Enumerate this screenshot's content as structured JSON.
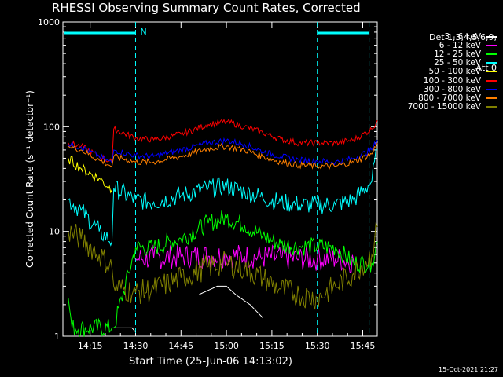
{
  "title": "RHESSI Observing Summary Count Rates, Corrected",
  "xlabel": "Start Time (25-Jun-06 14:13:02)",
  "ylabel": "Corrected Count Rate (s⁻¹ detector⁻¹)",
  "timestamp": "15-Oct-2021 21:27",
  "detectors": "Det 1,3,4,5,6,9,",
  "attenuator": "Att 0",
  "chart_data": {
    "type": "line",
    "yscale": "log",
    "ylim": [
      1,
      1000
    ],
    "xlim_minutes": [
      14.1,
      15.83
    ],
    "x_ticks": [
      "14:15",
      "14:30",
      "14:45",
      "15:00",
      "15:15",
      "15:30",
      "15:45"
    ],
    "y_ticks": [
      "1",
      "10",
      "100",
      "1000"
    ],
    "night_markers": [
      14.5,
      15.5
    ],
    "saa_markers": [
      15.785
    ],
    "flag_label": "N",
    "series": [
      {
        "name": "3 - 6 keV",
        "color": "#ffffff",
        "x": [
          14.13,
          14.37,
          14.38,
          14.48,
          14.5,
          14.52,
          14.8,
          14.85,
          14.95,
          15.0,
          15.05,
          15.13,
          15.2,
          15.25,
          15.3,
          15.45,
          15.5,
          15.6,
          15.7,
          15.8
        ],
        "y": [
          null,
          null,
          1.2,
          1.2,
          1.1,
          null,
          null,
          2.5,
          3.0,
          3.0,
          2.5,
          2.0,
          1.5,
          null,
          null,
          null,
          null,
          null,
          null,
          null
        ]
      },
      {
        "name": "6 - 12 keV",
        "color": "#ff00ff",
        "x": [
          14.13,
          14.37,
          14.5,
          14.6,
          14.75,
          14.9,
          15.0,
          15.1,
          15.2,
          15.3,
          15.4,
          15.5,
          15.6,
          15.7,
          15.8
        ],
        "y": [
          null,
          null,
          5.5,
          5.6,
          5.8,
          5.8,
          5.9,
          5.8,
          5.7,
          5.6,
          5.5,
          5.5,
          5.5,
          5.2,
          null
        ]
      },
      {
        "name": "12 - 25 keV",
        "color": "#00ff00",
        "x": [
          14.13,
          14.15,
          14.37,
          14.38,
          14.5,
          14.6,
          14.75,
          14.9,
          15.0,
          15.1,
          15.2,
          15.3,
          15.4,
          15.5,
          15.6,
          15.7,
          15.8,
          15.83
        ],
        "y": [
          2.3,
          1.2,
          1.2,
          1.2,
          7.0,
          7.0,
          8.5,
          12.0,
          13.5,
          11.5,
          9.0,
          7.5,
          7.2,
          7.2,
          7.0,
          5.0,
          5.0,
          8.0
        ]
      },
      {
        "name": "25 - 50 keV",
        "color": "#00ffff",
        "x": [
          14.13,
          14.2,
          14.3,
          14.37,
          14.38,
          14.5,
          14.6,
          14.75,
          14.9,
          15.0,
          15.1,
          15.2,
          15.3,
          15.4,
          15.5,
          15.6,
          15.7,
          15.8,
          15.83
        ],
        "y": [
          20.0,
          16.0,
          10.0,
          8.0,
          26.0,
          20.0,
          19.0,
          22.0,
          26.0,
          27.0,
          24.0,
          21.0,
          19.0,
          18.0,
          18.0,
          18.0,
          20.0,
          30.0,
          60.0
        ]
      },
      {
        "name": "50 - 100 keV",
        "color": "#ffff00",
        "x": [
          14.13,
          14.2,
          14.3,
          14.37
        ],
        "y": [
          50.0,
          40.0,
          32.0,
          25.0
        ]
      },
      {
        "name": "100 - 300 keV",
        "color": "#ff0000",
        "x": [
          14.13,
          14.2,
          14.3,
          14.37,
          14.38,
          14.5,
          14.6,
          14.75,
          14.9,
          15.0,
          15.1,
          15.2,
          15.3,
          15.4,
          15.5,
          15.6,
          15.7,
          15.8,
          15.83
        ],
        "y": [
          70.0,
          65.0,
          52.0,
          46.0,
          95.0,
          78.0,
          75.0,
          85.0,
          105.0,
          112.0,
          100.0,
          88.0,
          76.0,
          70.0,
          70.0,
          70.0,
          75.0,
          95.0,
          115.0
        ]
      },
      {
        "name": "300 - 800 keV",
        "color": "#0000ff",
        "x": [
          14.13,
          14.2,
          14.3,
          14.37,
          14.38,
          14.5,
          14.6,
          14.75,
          14.9,
          15.0,
          15.1,
          15.2,
          15.3,
          15.4,
          15.5,
          15.6,
          15.7,
          15.8,
          15.83
        ],
        "y": [
          68.0,
          64.0,
          52.0,
          45.0,
          60.0,
          53.0,
          52.0,
          60.0,
          70.0,
          74.0,
          68.0,
          58.0,
          52.0,
          48.0,
          47.0,
          46.0,
          50.0,
          60.0,
          75.0
        ]
      },
      {
        "name": "800 - 7000 keV",
        "color": "#ff8000",
        "x": [
          14.13,
          14.2,
          14.3,
          14.37,
          14.38,
          14.5,
          14.6,
          14.75,
          14.9,
          15.0,
          15.1,
          15.2,
          15.3,
          15.4,
          15.5,
          15.6,
          15.7,
          15.8,
          15.83
        ],
        "y": [
          65.0,
          60.0,
          48.0,
          42.0,
          52.0,
          46.0,
          46.0,
          52.0,
          62.0,
          65.0,
          60.0,
          52.0,
          46.0,
          43.0,
          42.0,
          42.0,
          46.0,
          55.0,
          70.0
        ]
      },
      {
        "name": "7000 - 15000 keV",
        "color": "#808000",
        "x": [
          14.13,
          14.2,
          14.3,
          14.37,
          14.38,
          14.5,
          14.6,
          14.75,
          14.9,
          15.0,
          15.1,
          15.2,
          15.3,
          15.4,
          15.5,
          15.6,
          15.7,
          15.8,
          15.83
        ],
        "y": [
          10.0,
          8.5,
          6.0,
          4.5,
          3.0,
          2.6,
          2.8,
          3.6,
          4.6,
          5.0,
          4.4,
          3.6,
          2.8,
          2.5,
          2.3,
          3.0,
          4.0,
          6.0,
          11.0
        ]
      }
    ]
  }
}
